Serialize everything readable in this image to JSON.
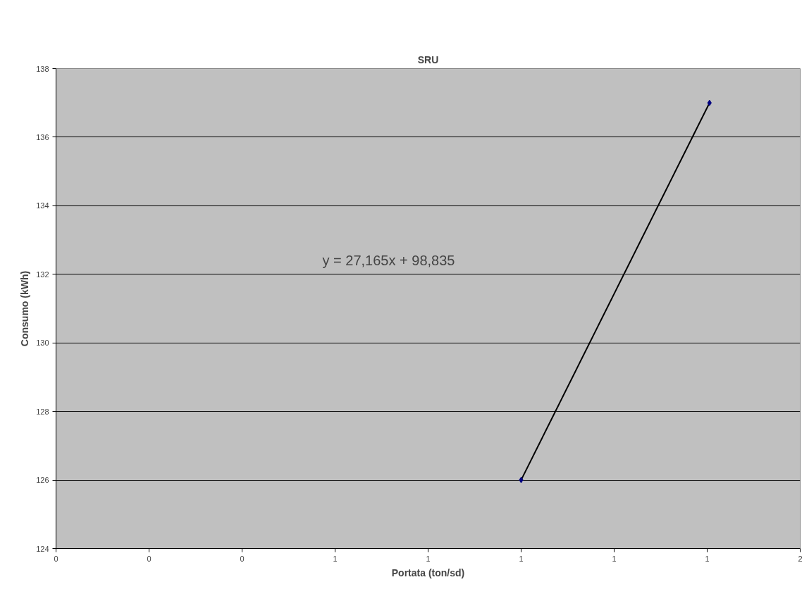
{
  "chart_data": {
    "type": "scatter",
    "title": "SRU",
    "xlabel": "Portata (ton/sd)",
    "ylabel": "Consumo (kWh)",
    "series": [
      {
        "color": "#000080",
        "marker": "diamond",
        "values": [
          126,
          137
        ]
      },
      {
        "type": "line",
        "color": "#000000",
        "line_style": "solid",
        "values": [
          126,
          137
        ]
      }
    ],
    "x": [
      1.0,
      1.405
    ],
    "xlim": [
      0,
      1.6
    ],
    "ylim": [
      124,
      138
    ],
    "xticks": [
      {
        "value": 0,
        "label": "0"
      },
      {
        "value": 0.2,
        "label": "0"
      },
      {
        "value": 0.4,
        "label": "0"
      },
      {
        "value": 0.6,
        "label": "1"
      },
      {
        "value": 0.8,
        "label": "1"
      },
      {
        "value": 1.0,
        "label": "1"
      },
      {
        "value": 1.2,
        "label": "1"
      },
      {
        "value": 1.4,
        "label": "1"
      },
      {
        "value": 1.6,
        "label": "2"
      }
    ],
    "yticks": [
      124,
      126,
      128,
      130,
      132,
      134,
      136,
      138
    ],
    "grid": "y",
    "annotations": [
      "y = 27,165x + 98,835"
    ]
  }
}
